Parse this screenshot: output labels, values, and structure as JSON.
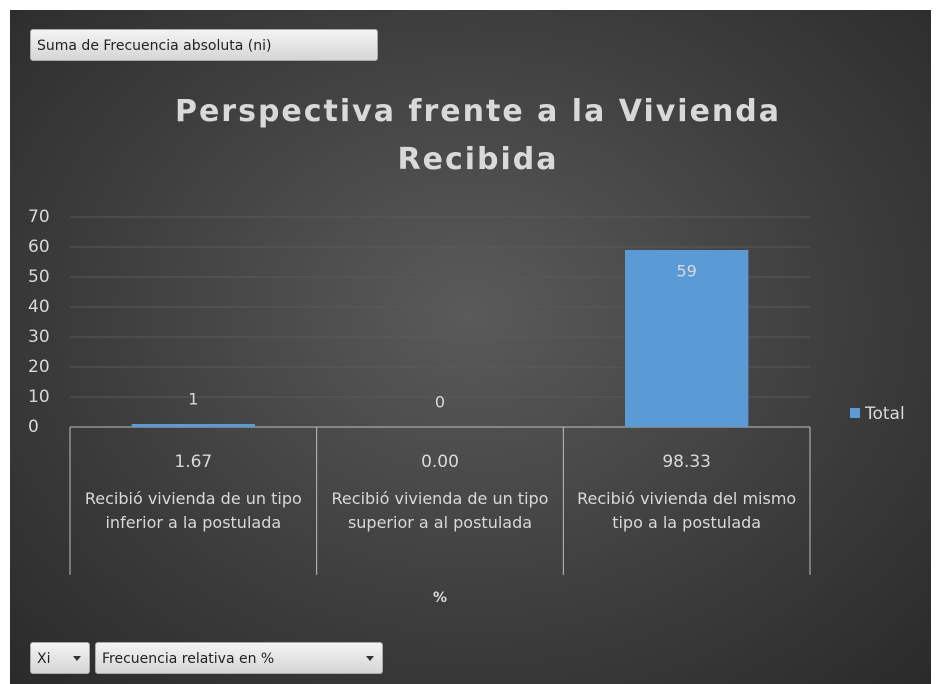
{
  "pivot_fields": {
    "value_field": "Suma de Frecuencia absoluta (ni)",
    "axis_fields": [
      "Xi",
      "Frecuencia relativa en %"
    ]
  },
  "chart_data": {
    "type": "bar",
    "title": "Perspectiva frente a la Vivienda Recibida",
    "categories": [
      "1.67",
      "0.00",
      "98.33"
    ],
    "category_groups": [
      "Recibió vivienda de un tipo inferior a la postulada",
      "Recibió vivienda de un tipo superior a al postulada",
      "Recibió vivienda del mismo tipo a la postulada"
    ],
    "x_label": "%",
    "series": [
      {
        "name": "Total",
        "color": "#5b9bd5",
        "values": [
          1,
          0,
          59
        ]
      }
    ],
    "ylim": [
      0,
      70
    ],
    "yticks": [
      0,
      10,
      20,
      30,
      40,
      50,
      60,
      70
    ],
    "grid": true,
    "legend": "right"
  }
}
